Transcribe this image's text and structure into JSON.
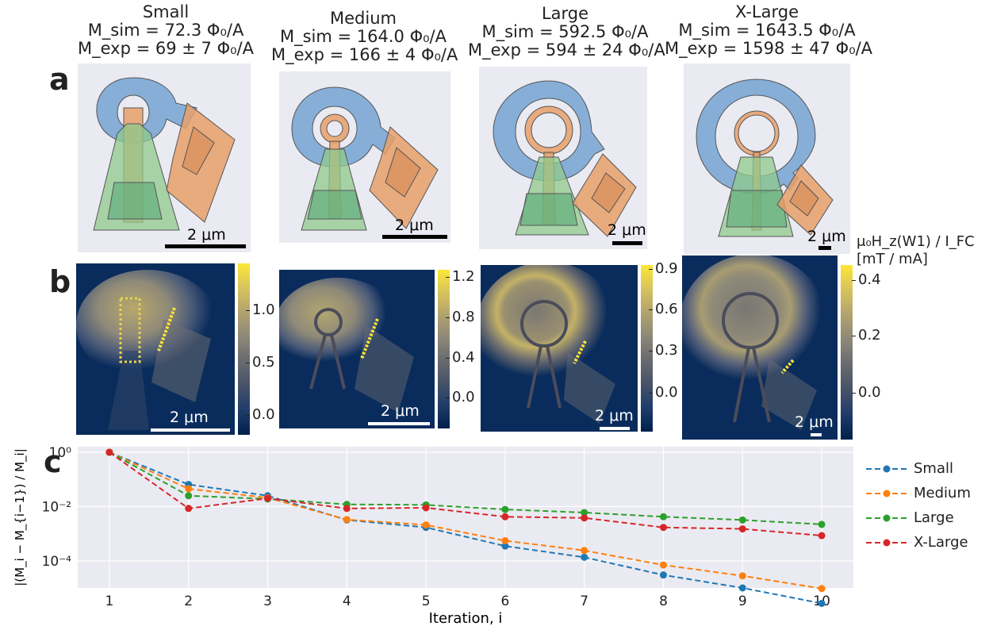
{
  "panels": {
    "a": "a",
    "b": "b",
    "c": "c"
  },
  "devices": [
    {
      "name": "Small",
      "m_sim": "M_sim = 72.3 Φ₀/A",
      "m_exp": "M_exp = 69 ± 7 Φ₀/A",
      "scalebar": "2 μm"
    },
    {
      "name": "Medium",
      "m_sim": "M_sim = 164.0 Φ₀/A",
      "m_exp": "M_exp = 166 ± 4 Φ₀/A",
      "scalebar": "2 μm"
    },
    {
      "name": "Large",
      "m_sim": "M_sim = 592.5 Φ₀/A",
      "m_exp": "M_exp = 594 ± 24 Φ₀/A",
      "scalebar": "2 μm"
    },
    {
      "name": "X-Large",
      "m_sim": "M_sim = 1643.5 Φ₀/A",
      "m_exp": "M_exp = 1598 ± 47 Φ₀/A",
      "scalebar": "2 μm"
    }
  ],
  "colorbars": {
    "label_line1": "μ₀H_z(W1) / I_FC",
    "label_line2": "[mT / mA]",
    "ticks": [
      [
        "0.0",
        "0.5",
        "1.0"
      ],
      [
        "0.0",
        "0.4",
        "0.8",
        "1.2"
      ],
      [
        "0.0",
        "0.3",
        "0.6",
        "0.9"
      ],
      [
        "0.0",
        "0.2",
        "0.4"
      ]
    ]
  },
  "colors": {
    "small": "#1f77b4",
    "medium": "#ff7f0e",
    "large": "#2ca02c",
    "xlarge": "#d62728",
    "loop": "#7ba7d4",
    "field": "#e8a06a",
    "lead": "#8fc98c",
    "bg": "#eaeaf2"
  },
  "chart_data": {
    "type": "line",
    "xlabel": "Iteration, i",
    "ylabel": "|(M_i − M_{i−1}) / M_i|",
    "yscale": "log",
    "ylim": [
      1e-05,
      1.6
    ],
    "xlim": [
      0.6,
      10.4
    ],
    "xticks": [
      "1",
      "2",
      "3",
      "4",
      "5",
      "6",
      "7",
      "8",
      "9",
      "10"
    ],
    "yticks": [
      "10⁰",
      "10⁻²",
      "10⁻⁴"
    ],
    "x": [
      1,
      2,
      3,
      4,
      5,
      6,
      7,
      8,
      9,
      10
    ],
    "series": [
      {
        "name": "Small",
        "color": "#1f77b4",
        "values": [
          1.0,
          0.065,
          0.025,
          0.0032,
          0.0017,
          0.00035,
          0.000135,
          3e-05,
          1e-05,
          2.7e-06
        ]
      },
      {
        "name": "Medium",
        "color": "#ff7f0e",
        "values": [
          1.0,
          0.045,
          0.021,
          0.0033,
          0.0021,
          0.00055,
          0.00024,
          7e-05,
          2.8e-05,
          9.5e-06
        ]
      },
      {
        "name": "Large",
        "color": "#2ca02c",
        "values": [
          1.0,
          0.025,
          0.019,
          0.012,
          0.0115,
          0.0078,
          0.006,
          0.0042,
          0.0032,
          0.0022
        ]
      },
      {
        "name": "X-Large",
        "color": "#d62728",
        "values": [
          1.0,
          0.0085,
          0.02,
          0.0085,
          0.009,
          0.0042,
          0.0038,
          0.0017,
          0.0015,
          0.00085
        ]
      }
    ],
    "grid": true,
    "legend": "right"
  }
}
